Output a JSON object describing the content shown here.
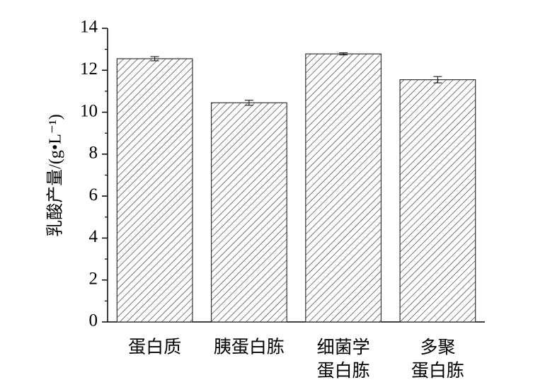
{
  "chart_data": {
    "type": "bar",
    "y_label": "乳酸产量/(g•L⁻¹)",
    "categories": [
      "蛋白质",
      "胰蛋白胨",
      "细菌学\n蛋白胨",
      "多聚\n蛋白胨"
    ],
    "values": [
      12.55,
      10.45,
      12.78,
      11.55
    ],
    "errors": [
      0.1,
      0.12,
      0.05,
      0.15
    ],
    "color": "#333333",
    "ylim": [
      0,
      14
    ],
    "yticks": [
      0,
      2,
      4,
      6,
      8,
      10,
      12,
      14
    ],
    "minor_yticks": [
      1,
      3,
      5,
      7,
      9,
      11,
      13
    ]
  }
}
